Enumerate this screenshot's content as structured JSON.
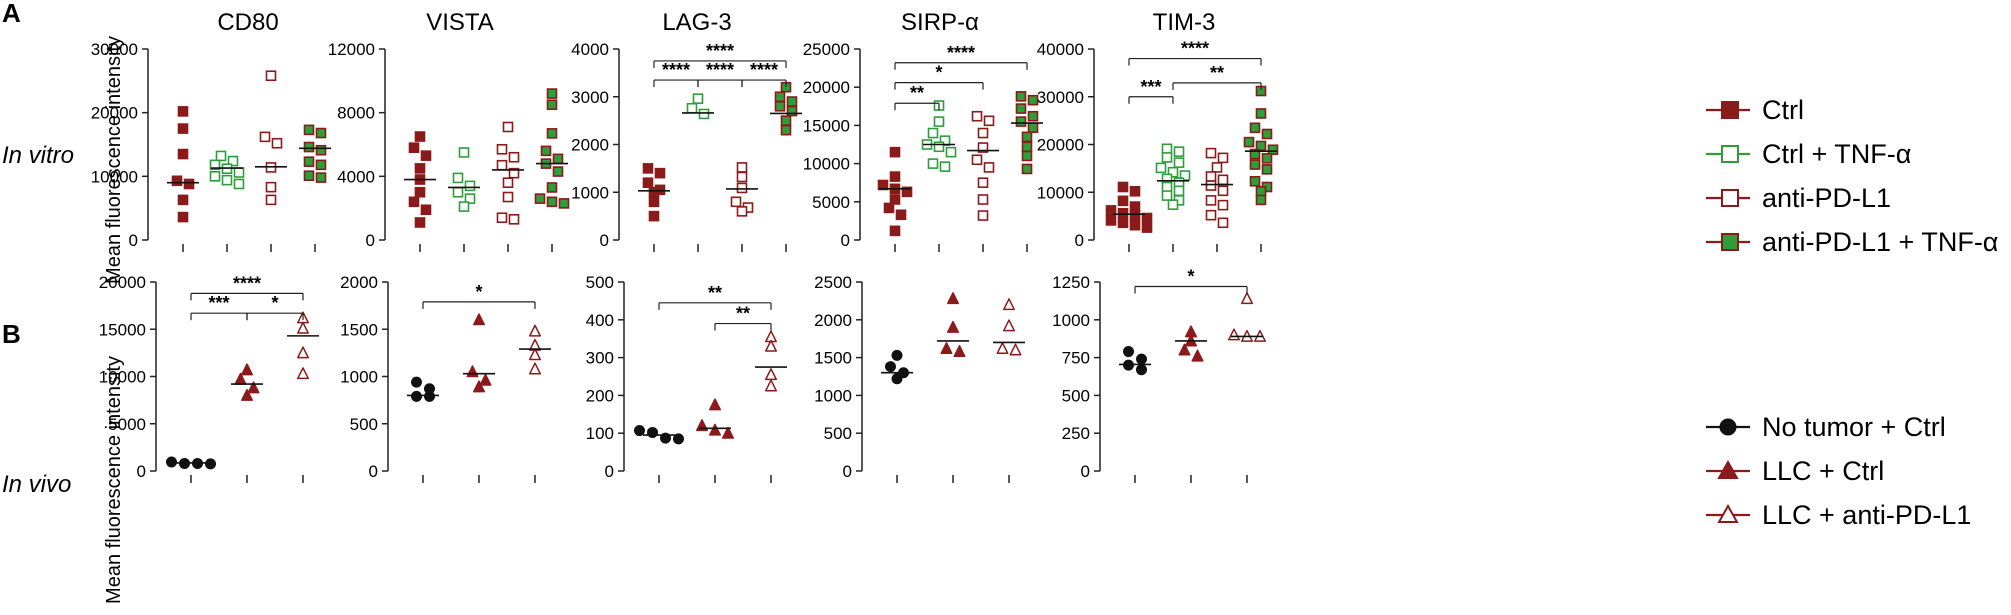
{
  "figure": {
    "row_labels": {
      "A": "A",
      "B": "B"
    },
    "row_conditions": {
      "a": "In vitro",
      "b": "In vivo"
    },
    "y_axis_label": "Mean fluorescence intensity"
  },
  "colors": {
    "darkred": "#8b1a1a",
    "green": "#2e9e3a",
    "black": "#111111",
    "axis": "#222222"
  },
  "legend_a": [
    {
      "label": "Ctrl",
      "marker": "square-filled",
      "color": "#8b1a1a",
      "fill": "#8b1a1a"
    },
    {
      "label": "Ctrl + TNF-α",
      "marker": "square-open",
      "color": "#2e9e3a",
      "fill": "none"
    },
    {
      "label": "anti-PD-L1",
      "marker": "square-open",
      "color": "#8b1a1a",
      "fill": "none"
    },
    {
      "label": "anti-PD-L1 + TNF-α",
      "marker": "square-filled",
      "color": "#8b1a1a",
      "fill": "#2e9e3a"
    }
  ],
  "legend_b": [
    {
      "label": "No tumor + Ctrl",
      "marker": "circle",
      "color": "#111111",
      "fill": "#111111"
    },
    {
      "label": "LLC + Ctrl",
      "marker": "triangle-filled",
      "color": "#8b1a1a",
      "fill": "#8b1a1a"
    },
    {
      "label": "LLC + anti-PD-L1",
      "marker": "triangle-open",
      "color": "#8b1a1a",
      "fill": "none"
    }
  ],
  "chart_data": [
    {
      "type": "scatter",
      "row": "A",
      "title": "CD80",
      "ylim": [
        0,
        30000
      ],
      "yticks": [
        0,
        10000,
        20000,
        30000
      ],
      "ytick_labels": [
        "0",
        "10000",
        "20000",
        "30000"
      ],
      "groups": [
        {
          "name": "Ctrl",
          "marker": "square-filled",
          "values": [
            20200,
            17500,
            13500,
            9300,
            8800,
            6300,
            3600
          ],
          "mean": 9000
        },
        {
          "name": "Ctrl + TNF-α",
          "marker": "square-open",
          "values": [
            13200,
            12400,
            11800,
            11200,
            10600,
            10000,
            9400,
            8800
          ],
          "mean": 11300
        },
        {
          "name": "anti-PD-L1",
          "marker": "square-open-red",
          "values": [
            25800,
            16200,
            15200,
            11400,
            8300,
            6300
          ],
          "mean": 11500
        },
        {
          "name": "anti-PD-L1 + TNF-α",
          "marker": "square-mixed",
          "values": [
            17300,
            16800,
            14600,
            14100,
            12300,
            11800,
            10100,
            9800
          ],
          "mean": 14400
        }
      ],
      "brackets": []
    },
    {
      "type": "scatter",
      "row": "A",
      "title": "VISTA",
      "ylim": [
        0,
        12000
      ],
      "yticks": [
        0,
        4000,
        8000,
        12000
      ],
      "ytick_labels": [
        "0",
        "4000",
        "8000",
        "12000"
      ],
      "groups": [
        {
          "name": "Ctrl",
          "marker": "square-filled",
          "values": [
            6500,
            5800,
            5300,
            4500,
            3800,
            3000,
            2400,
            1900,
            1100
          ],
          "mean": 3800
        },
        {
          "name": "Ctrl + TNF-α",
          "marker": "square-open",
          "values": [
            5500,
            3900,
            3400,
            3000,
            2600,
            2100
          ],
          "mean": 3300
        },
        {
          "name": "anti-PD-L1",
          "marker": "square-open-red",
          "values": [
            7100,
            5700,
            5200,
            4700,
            4200,
            3600,
            2700,
            1400,
            1300
          ],
          "mean": 4400
        },
        {
          "name": "anti-PD-L1 + TNF-α",
          "marker": "square-mixed",
          "values": [
            9200,
            8500,
            6700,
            5600,
            5100,
            4800,
            4300,
            3300,
            2600,
            2400,
            2300
          ],
          "mean": 4800
        }
      ],
      "brackets": []
    },
    {
      "type": "scatter",
      "row": "A",
      "title": "LAG-3",
      "ylim": [
        0,
        4000
      ],
      "yticks": [
        0,
        1000,
        2000,
        3000,
        4000
      ],
      "ytick_labels": [
        "0",
        "1000",
        "2000",
        "3000",
        "4000"
      ],
      "groups": [
        {
          "name": "Ctrl",
          "marker": "square-filled",
          "values": [
            1500,
            1400,
            1200,
            1050,
            1000,
            800,
            500
          ],
          "mean": 1030
        },
        {
          "name": "Ctrl + TNF-α",
          "marker": "square-open",
          "values": [
            2960,
            2760,
            2640
          ],
          "mean": 2660
        },
        {
          "name": "anti-PD-L1",
          "marker": "square-open-red",
          "values": [
            1520,
            1320,
            1090,
            800,
            680,
            600
          ],
          "mean": 1070
        },
        {
          "name": "anti-PD-L1 + TNF-α",
          "marker": "square-mixed",
          "values": [
            3200,
            3000,
            2900,
            2800,
            2700,
            2500,
            2300
          ],
          "mean": 2650
        }
      ],
      "brackets": [
        {
          "from": 0,
          "to": 3,
          "level": 3750,
          "label": "****"
        },
        {
          "from": 0,
          "to": 1,
          "level": 3350,
          "label": "****"
        },
        {
          "from": 1,
          "to": 2,
          "level": 3350,
          "label": "****"
        },
        {
          "from": 2,
          "to": 3,
          "level": 3350,
          "label": "****"
        }
      ]
    },
    {
      "type": "scatter",
      "row": "A",
      "title": "SIRP-α",
      "ylim": [
        0,
        25000
      ],
      "yticks": [
        0,
        5000,
        10000,
        15000,
        20000,
        25000
      ],
      "ytick_labels": [
        "0",
        "5000",
        "10000",
        "15000",
        "20000",
        "25000"
      ],
      "groups": [
        {
          "name": "Ctrl",
          "marker": "square-filled",
          "values": [
            11500,
            8300,
            7200,
            6700,
            6300,
            5300,
            4200,
            3300,
            1200
          ],
          "mean": 6700
        },
        {
          "name": "Ctrl + TNF-α",
          "marker": "square-open",
          "values": [
            17600,
            15500,
            14000,
            13000,
            12500,
            12200,
            11500,
            10000,
            9600
          ],
          "mean": 12500
        },
        {
          "name": "anti-PD-L1",
          "marker": "square-open-red",
          "values": [
            16200,
            15600,
            14000,
            12100,
            10500,
            9500,
            7500,
            5300,
            3200
          ],
          "mean": 11700
        },
        {
          "name": "anti-PD-L1 + TNF-α",
          "marker": "square-mixed",
          "values": [
            18800,
            18300,
            17200,
            16200,
            15500,
            14700,
            13500,
            12200,
            11000,
            9300
          ],
          "mean": 15300
        }
      ],
      "brackets": [
        {
          "from": 0,
          "to": 3,
          "level": 23200,
          "label": "****"
        },
        {
          "from": 0,
          "to": 2,
          "level": 20600,
          "label": "*"
        },
        {
          "from": 0,
          "to": 1,
          "level": 17900,
          "label": "**"
        }
      ]
    },
    {
      "type": "scatter",
      "row": "A",
      "title": "TIM-3",
      "ylim": [
        0,
        40000
      ],
      "yticks": [
        0,
        10000,
        20000,
        30000,
        40000
      ],
      "ytick_labels": [
        "0",
        "10000",
        "20000",
        "30000",
        "40000"
      ],
      "groups": [
        {
          "name": "Ctrl",
          "marker": "square-filled",
          "values": [
            11100,
            10200,
            8200,
            7000,
            6200,
            5600,
            5100,
            4600,
            4100,
            3600,
            3100,
            2600
          ],
          "mean": 5400
        },
        {
          "name": "Ctrl + TNF-α",
          "marker": "square-open",
          "values": [
            19100,
            18500,
            17300,
            16200,
            15100,
            14200,
            13500,
            12800,
            12000,
            11100,
            10300,
            9300,
            8300,
            7400
          ],
          "mean": 12400
        },
        {
          "name": "anti-PD-L1",
          "marker": "square-open-red",
          "values": [
            18200,
            17200,
            15200,
            13300,
            12600,
            11400,
            10300,
            8300,
            7300,
            5200,
            3600
          ],
          "mean": 11600
        },
        {
          "name": "anti-PD-L1 + TNF-α",
          "marker": "square-mixed",
          "values": [
            31200,
            26500,
            23500,
            22200,
            20500,
            19700,
            18900,
            18000,
            17100,
            15800,
            14800,
            12300,
            11100,
            10200,
            8400
          ],
          "mean": 18600
        }
      ],
      "brackets": [
        {
          "from": 0,
          "to": 3,
          "level": 38000,
          "label": "****"
        },
        {
          "from": 1,
          "to": 3,
          "level": 32900,
          "label": "**"
        },
        {
          "from": 0,
          "to": 1,
          "level": 30000,
          "label": "***"
        }
      ]
    },
    {
      "type": "scatter",
      "row": "B",
      "title": "",
      "ylim": [
        0,
        20000
      ],
      "yticks": [
        0,
        5000,
        10000,
        15000,
        20000
      ],
      "ytick_labels": [
        "0",
        "5000",
        "10000",
        "15000",
        "20000"
      ],
      "groups": [
        {
          "name": "No tumor + Ctrl",
          "marker": "circle",
          "values": [
            950,
            800,
            750,
            800
          ],
          "mean": 850
        },
        {
          "name": "LLC + Ctrl",
          "marker": "triangle-filled",
          "values": [
            10700,
            9700,
            8800,
            8000
          ],
          "mean": 9200
        },
        {
          "name": "LLC + anti-PD-L1",
          "marker": "triangle-open",
          "values": [
            16200,
            15100,
            12500,
            10300
          ],
          "mean": 14300
        }
      ],
      "brackets": [
        {
          "from": 0,
          "to": 2,
          "level": 18800,
          "label": "****"
        },
        {
          "from": 0,
          "to": 1,
          "level": 16700,
          "label": "***"
        },
        {
          "from": 1,
          "to": 2,
          "level": 16700,
          "label": "*"
        }
      ]
    },
    {
      "type": "scatter",
      "row": "B",
      "title": "",
      "ylim": [
        0,
        2000
      ],
      "yticks": [
        0,
        500,
        1000,
        1500,
        2000
      ],
      "ytick_labels": [
        "0",
        "500",
        "1000",
        "1500",
        "2000"
      ],
      "groups": [
        {
          "name": "No tumor + Ctrl",
          "marker": "circle",
          "values": [
            940,
            870,
            790,
            790
          ],
          "mean": 800
        },
        {
          "name": "LLC + Ctrl",
          "marker": "triangle-filled",
          "values": [
            1600,
            1050,
            960,
            890
          ],
          "mean": 1030
        },
        {
          "name": "LLC + anti-PD-L1",
          "marker": "triangle-open",
          "values": [
            1480,
            1330,
            1230,
            1080
          ],
          "mean": 1290
        }
      ],
      "brackets": [
        {
          "from": 0,
          "to": 2,
          "level": 1790,
          "label": "*"
        }
      ]
    },
    {
      "type": "scatter",
      "row": "B",
      "title": "",
      "ylim": [
        0,
        500
      ],
      "yticks": [
        0,
        100,
        200,
        300,
        400,
        500
      ],
      "ytick_labels": [
        "0",
        "100",
        "200",
        "300",
        "400",
        "500"
      ],
      "groups": [
        {
          "name": "No tumor + Ctrl",
          "marker": "circle",
          "values": [
            107,
            102,
            87,
            85
          ],
          "mean": 95
        },
        {
          "name": "LLC + Ctrl",
          "marker": "triangle-filled",
          "values": [
            175,
            120,
            108,
            100
          ],
          "mean": 113
        },
        {
          "name": "LLC + anti-PD-L1",
          "marker": "triangle-open",
          "values": [
            355,
            330,
            255,
            225
          ],
          "mean": 275
        }
      ],
      "brackets": [
        {
          "from": 0,
          "to": 2,
          "level": 445,
          "label": "**"
        },
        {
          "from": 1,
          "to": 2,
          "level": 390,
          "label": "**"
        }
      ]
    },
    {
      "type": "scatter",
      "row": "B",
      "title": "",
      "ylim": [
        0,
        2500
      ],
      "yticks": [
        0,
        500,
        1000,
        1500,
        2000,
        2500
      ],
      "ytick_labels": [
        "0",
        "500",
        "1000",
        "1500",
        "2000",
        "2500"
      ],
      "groups": [
        {
          "name": "No tumor + Ctrl",
          "marker": "circle",
          "values": [
            1530,
            1380,
            1300,
            1220
          ],
          "mean": 1300
        },
        {
          "name": "LLC + Ctrl",
          "marker": "triangle-filled",
          "values": [
            2280,
            1900,
            1620,
            1580
          ],
          "mean": 1720
        },
        {
          "name": "LLC + anti-PD-L1",
          "marker": "triangle-open",
          "values": [
            2200,
            1920,
            1620,
            1600
          ],
          "mean": 1700
        }
      ],
      "brackets": []
    },
    {
      "type": "scatter",
      "row": "B",
      "title": "",
      "ylim": [
        0,
        1250
      ],
      "yticks": [
        0,
        250,
        500,
        750,
        1000,
        1250
      ],
      "ytick_labels": [
        "0",
        "250",
        "500",
        "750",
        "1000",
        "1250"
      ],
      "groups": [
        {
          "name": "No tumor + Ctrl",
          "marker": "circle",
          "values": [
            790,
            740,
            700,
            670
          ],
          "mean": 705
        },
        {
          "name": "LLC + Ctrl",
          "marker": "triangle-filled",
          "values": [
            920,
            860,
            800,
            760
          ],
          "mean": 860
        },
        {
          "name": "LLC + anti-PD-L1",
          "marker": "triangle-open",
          "values": [
            1140,
            900,
            890,
            890
          ],
          "mean": 890
        }
      ],
      "brackets": [
        {
          "from": 0,
          "to": 2,
          "level": 1220,
          "label": "*"
        }
      ]
    }
  ]
}
